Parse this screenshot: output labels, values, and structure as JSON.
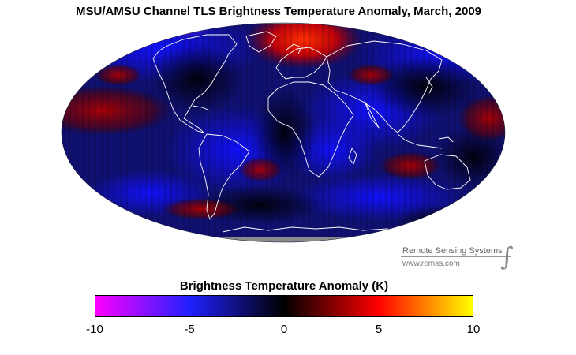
{
  "title": "MSU/AMSU Channel TLS Brightness Temperature Anomaly, March, 2009",
  "credit": {
    "line1": "Remote Sensing Systems",
    "line2": "www.remss.com",
    "logo": "∫"
  },
  "colorbar": {
    "title": "Brightness Temperature Anomaly (K)",
    "min": -10,
    "max": 10,
    "ticks": [
      "-10",
      "-5",
      "0",
      "5",
      "10"
    ],
    "colors": [
      "#ff00ff",
      "#2020ff",
      "#000000",
      "#ff0000",
      "#ffff00"
    ]
  }
}
